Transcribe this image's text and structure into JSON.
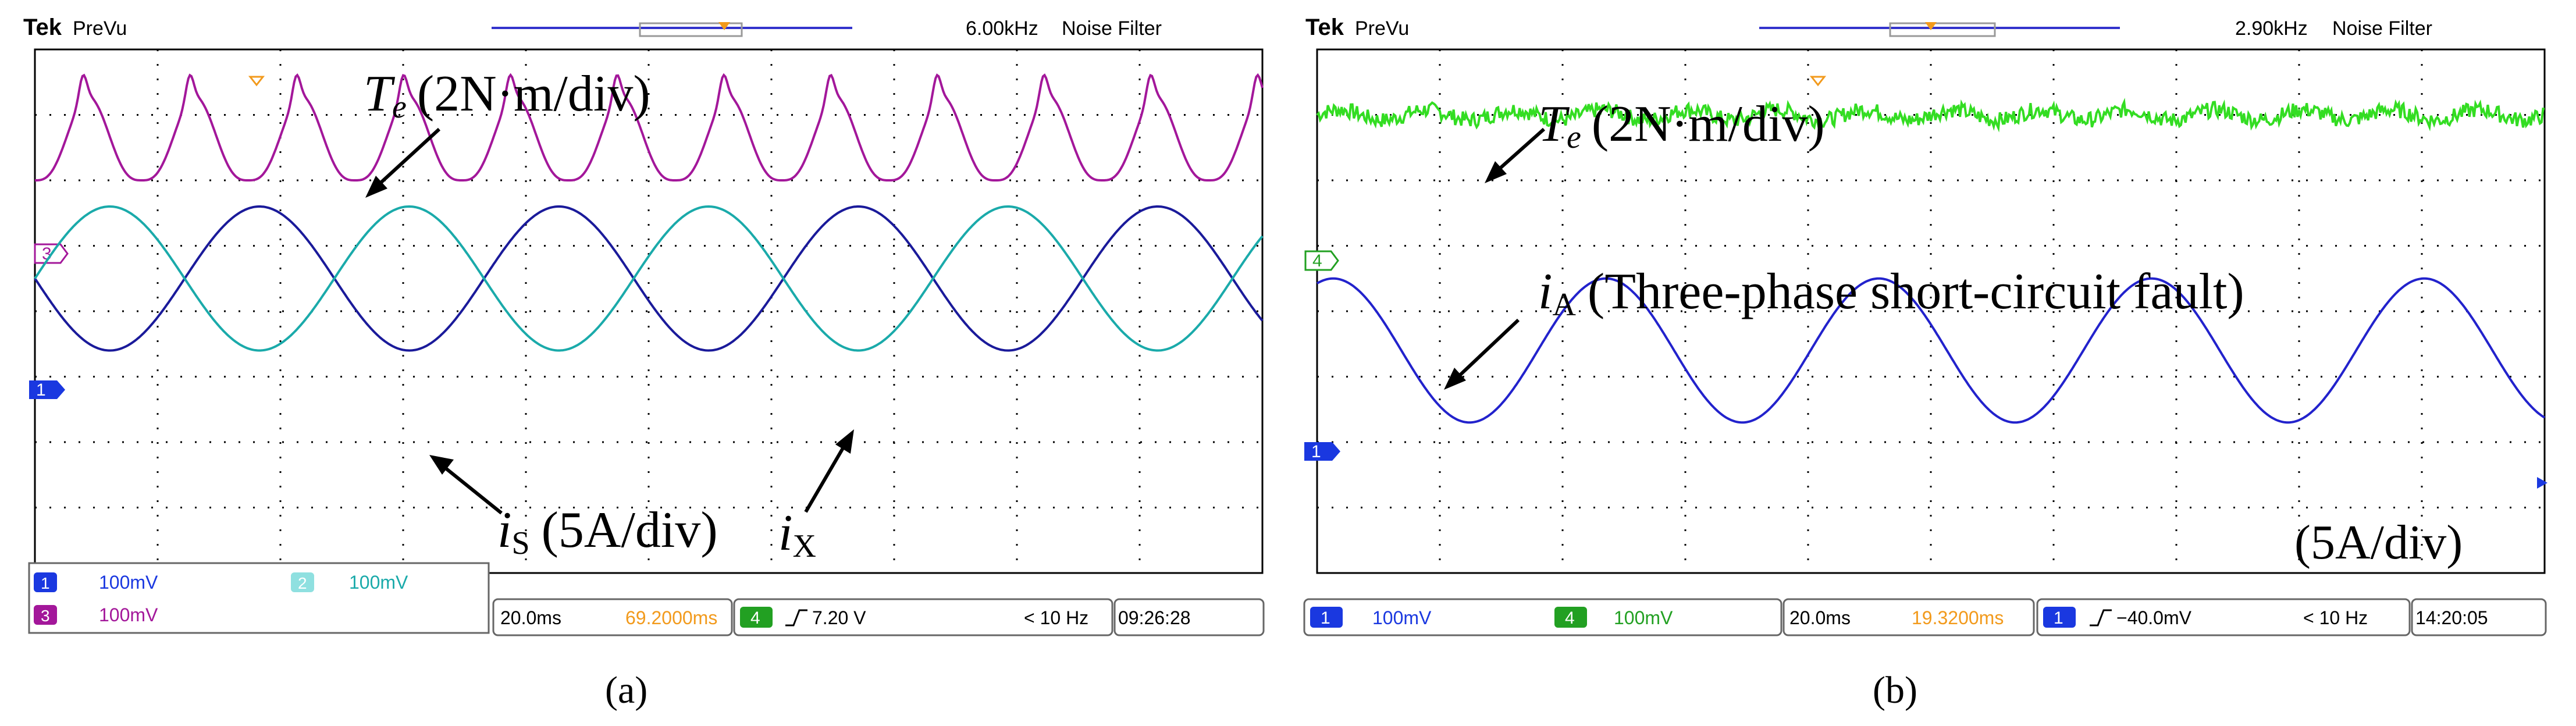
{
  "chart_data": [
    {
      "type": "line",
      "panel_label": "(a)",
      "header": {
        "brand": "Tek",
        "mode": "PreVu",
        "freq": "6.00kHz",
        "filter": "Noise Filter"
      },
      "channel_markers": [
        "3",
        "1"
      ],
      "annotations": [
        {
          "symbol": "T",
          "subscript": "e",
          "text": "(2N·m/div)"
        },
        {
          "symbol": "i",
          "subscript": "S",
          "text": "(5A/div)"
        },
        {
          "symbol": "i",
          "subscript": "X",
          "text": ""
        }
      ],
      "series": [
        {
          "color": "#a3179a",
          "kind": "torque",
          "offset_div": 2.75,
          "amp_div": 0.75,
          "periods": 11.5
        },
        {
          "color": "#1a1a9a",
          "kind": "sine",
          "offset_div": 0.5,
          "amp_div": 1.1,
          "periods": 4.1,
          "phase": 3.14
        },
        {
          "color": "#1aaaaa",
          "kind": "sine",
          "offset_div": 0.5,
          "amp_div": 1.1,
          "periods": 4.1,
          "phase": 0.0
        }
      ],
      "status": {
        "ch1": "100mV",
        "ch2": "100mV",
        "ch3": "100mV",
        "timebase": "20.0ms",
        "position": "69.2000ms",
        "trigger_ch": "4",
        "trigger": "7.20 V",
        "trigger_freq": "< 10 Hz",
        "clock": "09:26:28"
      }
    },
    {
      "type": "line",
      "panel_label": "(b)",
      "header": {
        "brand": "Tek",
        "mode": "PreVu",
        "freq": "2.90kHz",
        "filter": "Noise Filter"
      },
      "channel_markers": [
        "4",
        "1"
      ],
      "annotations": [
        {
          "symbol": "T",
          "subscript": "e",
          "text": "(2N·m/div)"
        },
        {
          "symbol": "i",
          "subscript": "A",
          "text": "(Three-phase short-circuit fault)"
        },
        {
          "symbol": "",
          "subscript": "",
          "text": "(5A/div)"
        }
      ],
      "series": [
        {
          "color": "#33dd22",
          "kind": "noise",
          "offset_div": 3.0,
          "amp_div": 0.12
        },
        {
          "color": "#2222cc",
          "kind": "sine",
          "offset_div": -0.6,
          "amp_div": 1.1,
          "periods": 4.5,
          "phase": 1.2
        }
      ],
      "status": {
        "ch1": "100mV",
        "ch4": "100mV",
        "timebase": "20.0ms",
        "position": "19.3200ms",
        "trigger_ch": "1",
        "trigger": "−40.0mV",
        "trigger_freq": "< 10 Hz",
        "clock": "14:20:05"
      }
    }
  ]
}
